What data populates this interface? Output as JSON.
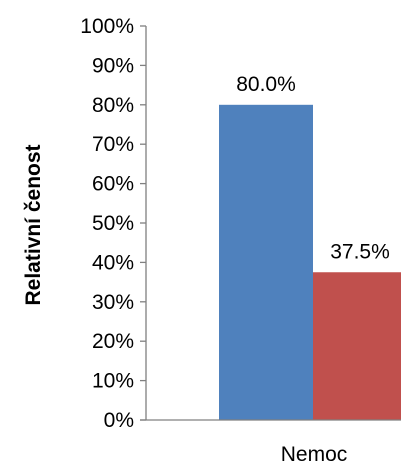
{
  "chart_data": {
    "type": "bar",
    "title": "",
    "xlabel": "",
    "ylabel": "Relativní čenost",
    "categories": [
      "Nemoc"
    ],
    "ylim": [
      0,
      100
    ],
    "yticks": [
      "0%",
      "10%",
      "20%",
      "30%",
      "40%",
      "50%",
      "60%",
      "70%",
      "80%",
      "90%",
      "100%"
    ],
    "series": [
      {
        "values": [
          80.0
        ],
        "label": "80.0%",
        "color": "#4f81bd"
      },
      {
        "values": [
          37.5
        ],
        "label": "37.5%",
        "color": "#c0504d"
      }
    ],
    "grid": false,
    "legend": "none"
  }
}
